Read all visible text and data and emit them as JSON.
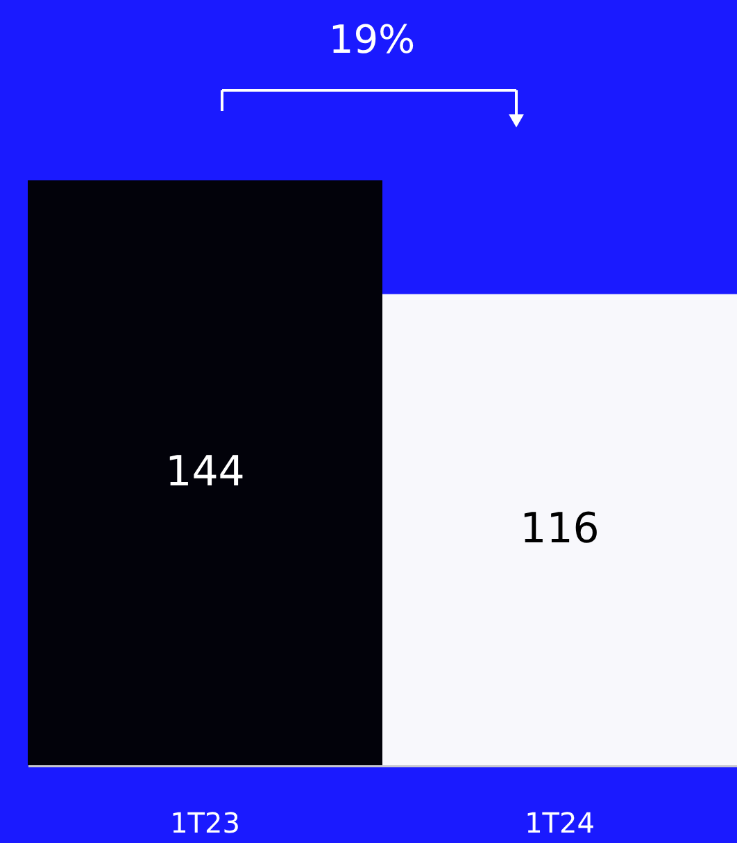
{
  "chart_data": {
    "type": "bar",
    "categories": [
      "1T23",
      "1T24"
    ],
    "values": [
      144,
      116
    ],
    "colors": [
      "#02020a",
      "#f8f8fc"
    ],
    "data_labels": true,
    "annotations": [
      "19%"
    ],
    "grid": false,
    "tick_labels": "x"
  }
}
